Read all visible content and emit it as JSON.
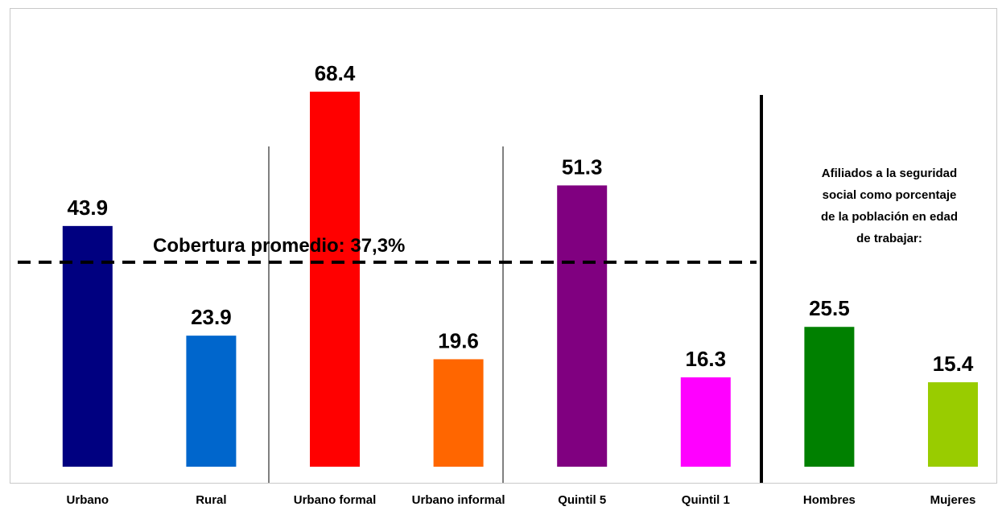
{
  "chart_data": {
    "type": "bar",
    "categories": [
      "Urbano",
      "Rural",
      "Urbano formal",
      "Urbano informal",
      "Quintil 5",
      "Quintil 1",
      "Hombres",
      "Mujeres"
    ],
    "values": [
      43.9,
      23.9,
      68.4,
      19.6,
      51.3,
      16.3,
      25.5,
      15.4
    ],
    "colors": [
      "#000080",
      "#0066cc",
      "#ff0000",
      "#ff6600",
      "#800080",
      "#ff00ff",
      "#008000",
      "#99cc00"
    ],
    "ylim": [
      0,
      70
    ],
    "reference_line": {
      "value": 37.3,
      "label": "Cobertura promedio: 37,3%"
    },
    "annotation": [
      "Afiliados a la seguridad",
      "social como porcentaje",
      "de la población en edad",
      "de trabajar:"
    ]
  }
}
